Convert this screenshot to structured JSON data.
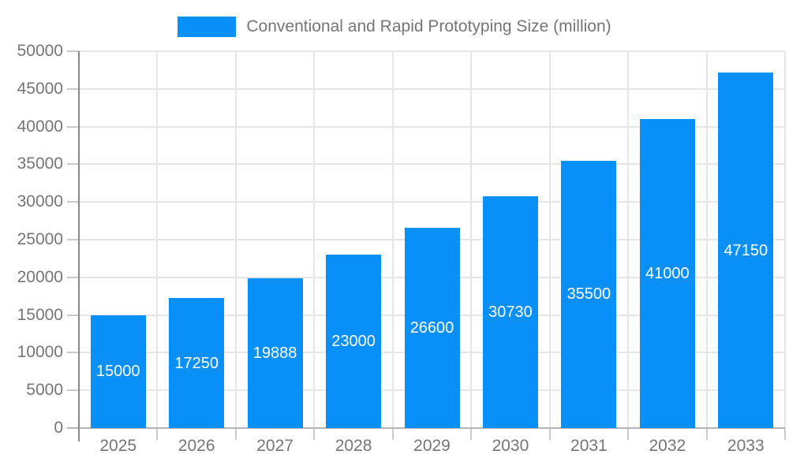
{
  "chart_data": {
    "type": "bar",
    "title": "Conventional and Rapid Prototyping Size (million)",
    "categories": [
      "2025",
      "2026",
      "2027",
      "2028",
      "2029",
      "2030",
      "2031",
      "2032",
      "2033"
    ],
    "values": [
      15000,
      17250,
      19888,
      23000,
      26600,
      30730,
      35500,
      41000,
      47150
    ],
    "xlabel": "",
    "ylabel": "",
    "ylim": [
      0,
      50000
    ],
    "ytick_step": 5000,
    "grid": true,
    "legend_position": "top-center",
    "value_labels": "inside-center-white"
  },
  "colors": {
    "bar": "#0890f8",
    "legend_swatch": "#0890f8",
    "axis_text": "#757575",
    "value_label_text": "#ffffff",
    "gridline": "#e6e6e6",
    "y_axis_line": "#888888",
    "x_axis_line": "#b5b5b5",
    "tick_mark": "#c9c9c9",
    "background": "#ffffff"
  }
}
